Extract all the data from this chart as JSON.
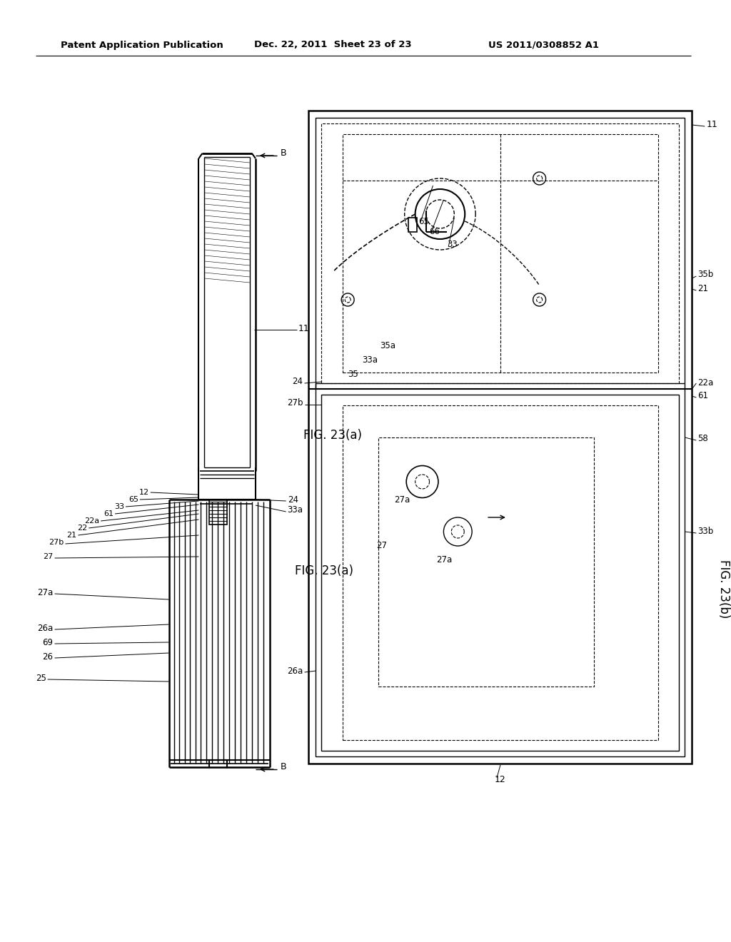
{
  "background_color": "#ffffff",
  "header_left": "Patent Application Publication",
  "header_center": "Dec. 22, 2011  Sheet 23 of 23",
  "header_right": "US 2011/0308852 A1",
  "line_color": "#000000",
  "text_color": "#000000"
}
